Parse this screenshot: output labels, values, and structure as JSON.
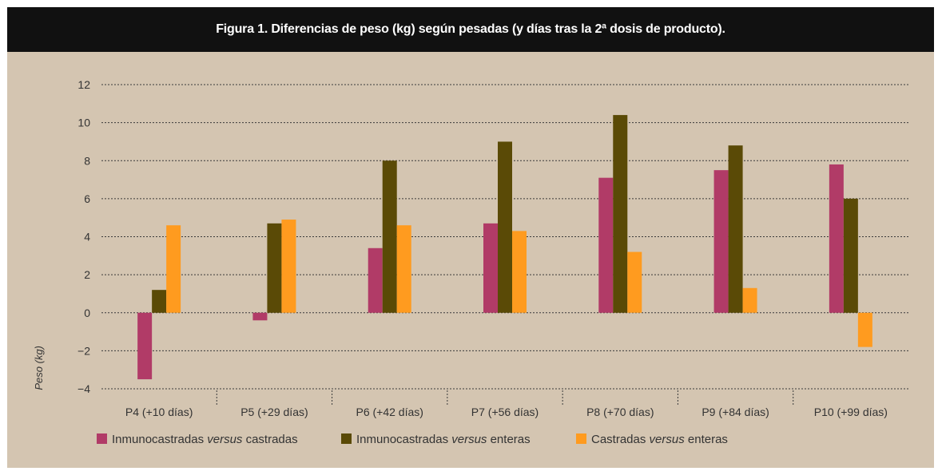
{
  "chart_data": {
    "type": "bar",
    "title": "Figura 1. Diferencias de peso (kg) según pesadas (y días tras la 2ª dosis de producto).",
    "ylabel": "Peso (kg)",
    "xlabel": "",
    "ylim": [
      -4,
      12
    ],
    "yticks": [
      12,
      10,
      8,
      6,
      4,
      2,
      0,
      -2,
      -4
    ],
    "grid": true,
    "legend_position": "bottom",
    "categories": [
      "P4 (+10 días)",
      "P5 (+29 días)",
      "P6 (+42 días)",
      "P7 (+56 días)",
      "P8 (+70 días)",
      "P9 (+84 días)",
      "P10 (+99 días)"
    ],
    "series": [
      {
        "name": "Inmunocastradas versus castradas",
        "name_parts": [
          "Inmunocastradas ",
          "versus",
          " castradas"
        ],
        "color": "#b13b67",
        "values": [
          -3.5,
          -0.4,
          3.4,
          4.7,
          7.1,
          7.5,
          7.8
        ]
      },
      {
        "name": "Inmunocastradas versus enteras",
        "name_parts": [
          "Inmunocastradas ",
          "versus",
          " enteras"
        ],
        "color": "#5a4a06",
        "values": [
          1.2,
          4.7,
          8.0,
          9.0,
          10.4,
          8.8,
          6.0
        ]
      },
      {
        "name": "Castradas versus enteras",
        "name_parts": [
          "Castradas ",
          "versus",
          " enteras"
        ],
        "color": "#ff9b1f",
        "values": [
          4.6,
          4.9,
          4.6,
          4.3,
          3.2,
          1.3,
          -1.8
        ]
      }
    ]
  }
}
